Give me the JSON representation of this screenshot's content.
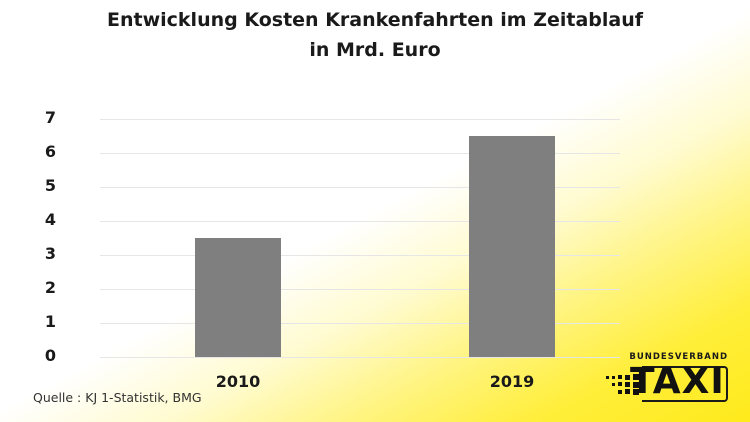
{
  "chart_data": {
    "type": "bar",
    "title": "Entwicklung Kosten Krankenfahrten im Zeitablauf",
    "subtitle": "in Mrd. Euro",
    "categories": [
      "2010",
      "2019"
    ],
    "values": [
      3.5,
      6.5
    ],
    "xlabel": "",
    "ylabel": "",
    "ylim": [
      0,
      7
    ],
    "yticks": [
      "0",
      "1",
      "2",
      "3",
      "4",
      "5",
      "6",
      "7"
    ],
    "grid": true,
    "legend": null,
    "bar_color": "#7f7f7f"
  },
  "title_line1": "Entwicklung Kosten Krankenfahrten im Zeitablauf",
  "title_line2": "in Mrd. Euro",
  "source": "Quelle : KJ 1-Statistik, BMG",
  "logo": {
    "top": "BUNDESVERBAND",
    "word": "TAXI"
  },
  "colors": {
    "accent_yellow": "#ffea1c",
    "bar": "#7f7f7f"
  }
}
